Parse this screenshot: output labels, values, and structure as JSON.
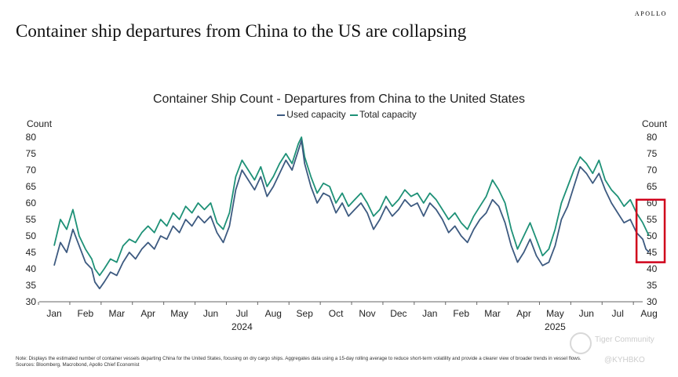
{
  "brand": "APOLLO",
  "headline": "Container ship departures from China to the US are collapsing",
  "note": "Note: Displays the estimated number of container vessels departing China for the United States, focusing on dry cargo ships. Aggregates data using a 15-day rolling average to reduce short-term volatility and provide a clearer view of broader trends in vessel flows.",
  "sources": "Sources: Bloomberg, Macrobond, Apollo Chief Economist",
  "watermark": {
    "name": "Tiger Community",
    "handle": "@KYHBKO"
  },
  "colors": {
    "used": "#3d5a80",
    "total": "#1e9177",
    "highlight": "#d0021b"
  },
  "chart_data": {
    "type": "line",
    "title": "Container Ship Count - Departures from China to the United States",
    "ylabel_left": "Count",
    "ylabel_right": "Count",
    "ylim": [
      30,
      80
    ],
    "yticks": [
      30,
      35,
      40,
      45,
      50,
      55,
      60,
      65,
      70,
      75,
      80
    ],
    "x_months": [
      "Jan",
      "Feb",
      "Mar",
      "Apr",
      "May",
      "Jun",
      "Jul",
      "Aug",
      "Sep",
      "Oct",
      "Nov",
      "Dec",
      "Jan",
      "Feb",
      "Mar",
      "Apr",
      "May",
      "Jun",
      "Jul",
      "Aug"
    ],
    "x_years": [
      {
        "label": "2024",
        "month_index": 6
      },
      {
        "label": "2025",
        "month_index": 16
      }
    ],
    "series": [
      {
        "name": "Used capacity",
        "points": [
          [
            0,
            41
          ],
          [
            0.2,
            48
          ],
          [
            0.4,
            45
          ],
          [
            0.6,
            52
          ],
          [
            0.8,
            47
          ],
          [
            1.0,
            42
          ],
          [
            1.2,
            40
          ],
          [
            1.3,
            36
          ],
          [
            1.45,
            34
          ],
          [
            1.6,
            36
          ],
          [
            1.8,
            39
          ],
          [
            2.0,
            38
          ],
          [
            2.2,
            42
          ],
          [
            2.4,
            45
          ],
          [
            2.6,
            43
          ],
          [
            2.8,
            46
          ],
          [
            3.0,
            48
          ],
          [
            3.2,
            46
          ],
          [
            3.4,
            50
          ],
          [
            3.6,
            49
          ],
          [
            3.8,
            53
          ],
          [
            4.0,
            51
          ],
          [
            4.2,
            55
          ],
          [
            4.4,
            53
          ],
          [
            4.6,
            56
          ],
          [
            4.8,
            54
          ],
          [
            5.0,
            56
          ],
          [
            5.2,
            51
          ],
          [
            5.4,
            48
          ],
          [
            5.6,
            53
          ],
          [
            5.8,
            64
          ],
          [
            6.0,
            70
          ],
          [
            6.2,
            67
          ],
          [
            6.4,
            64
          ],
          [
            6.6,
            68
          ],
          [
            6.8,
            62
          ],
          [
            7.0,
            65
          ],
          [
            7.2,
            69
          ],
          [
            7.4,
            73
          ],
          [
            7.6,
            70
          ],
          [
            7.8,
            76
          ],
          [
            7.9,
            79
          ],
          [
            8.0,
            72
          ],
          [
            8.2,
            65
          ],
          [
            8.4,
            60
          ],
          [
            8.6,
            63
          ],
          [
            8.8,
            62
          ],
          [
            9.0,
            57
          ],
          [
            9.2,
            60
          ],
          [
            9.4,
            56
          ],
          [
            9.6,
            58
          ],
          [
            9.8,
            60
          ],
          [
            10.0,
            57
          ],
          [
            10.2,
            52
          ],
          [
            10.4,
            55
          ],
          [
            10.6,
            59
          ],
          [
            10.8,
            56
          ],
          [
            11.0,
            58
          ],
          [
            11.2,
            61
          ],
          [
            11.4,
            59
          ],
          [
            11.6,
            60
          ],
          [
            11.8,
            56
          ],
          [
            12.0,
            60
          ],
          [
            12.2,
            58
          ],
          [
            12.4,
            55
          ],
          [
            12.6,
            51
          ],
          [
            12.8,
            53
          ],
          [
            13.0,
            50
          ],
          [
            13.2,
            48
          ],
          [
            13.4,
            52
          ],
          [
            13.6,
            55
          ],
          [
            13.8,
            57
          ],
          [
            14.0,
            61
          ],
          [
            14.2,
            59
          ],
          [
            14.4,
            54
          ],
          [
            14.6,
            47
          ],
          [
            14.8,
            42
          ],
          [
            15.0,
            45
          ],
          [
            15.2,
            49
          ],
          [
            15.4,
            44
          ],
          [
            15.6,
            41
          ],
          [
            15.8,
            42
          ],
          [
            16.0,
            47
          ],
          [
            16.2,
            55
          ],
          [
            16.4,
            59
          ],
          [
            16.6,
            65
          ],
          [
            16.8,
            71
          ],
          [
            17.0,
            69
          ],
          [
            17.2,
            66
          ],
          [
            17.4,
            69
          ],
          [
            17.6,
            64
          ],
          [
            17.8,
            60
          ],
          [
            18.0,
            57
          ],
          [
            18.2,
            54
          ],
          [
            18.4,
            55
          ],
          [
            18.6,
            51
          ],
          [
            18.8,
            49
          ],
          [
            18.9,
            46
          ],
          [
            19.0,
            45
          ]
        ]
      },
      {
        "name": "Total capacity",
        "points": [
          [
            0,
            47
          ],
          [
            0.2,
            55
          ],
          [
            0.4,
            52
          ],
          [
            0.6,
            58
          ],
          [
            0.8,
            50
          ],
          [
            1.0,
            46
          ],
          [
            1.2,
            43
          ],
          [
            1.3,
            40
          ],
          [
            1.45,
            38
          ],
          [
            1.6,
            40
          ],
          [
            1.8,
            43
          ],
          [
            2.0,
            42
          ],
          [
            2.2,
            47
          ],
          [
            2.4,
            49
          ],
          [
            2.6,
            48
          ],
          [
            2.8,
            51
          ],
          [
            3.0,
            53
          ],
          [
            3.2,
            51
          ],
          [
            3.4,
            55
          ],
          [
            3.6,
            53
          ],
          [
            3.8,
            57
          ],
          [
            4.0,
            55
          ],
          [
            4.2,
            59
          ],
          [
            4.4,
            57
          ],
          [
            4.6,
            60
          ],
          [
            4.8,
            58
          ],
          [
            5.0,
            60
          ],
          [
            5.2,
            54
          ],
          [
            5.4,
            52
          ],
          [
            5.6,
            57
          ],
          [
            5.8,
            68
          ],
          [
            6.0,
            73
          ],
          [
            6.2,
            70
          ],
          [
            6.4,
            67
          ],
          [
            6.6,
            71
          ],
          [
            6.8,
            65
          ],
          [
            7.0,
            68
          ],
          [
            7.2,
            72
          ],
          [
            7.4,
            75
          ],
          [
            7.6,
            72
          ],
          [
            7.8,
            78
          ],
          [
            7.9,
            80
          ],
          [
            8.0,
            74
          ],
          [
            8.2,
            68
          ],
          [
            8.4,
            63
          ],
          [
            8.6,
            66
          ],
          [
            8.8,
            65
          ],
          [
            9.0,
            60
          ],
          [
            9.2,
            63
          ],
          [
            9.4,
            59
          ],
          [
            9.6,
            61
          ],
          [
            9.8,
            63
          ],
          [
            10.0,
            60
          ],
          [
            10.2,
            56
          ],
          [
            10.4,
            58
          ],
          [
            10.6,
            62
          ],
          [
            10.8,
            59
          ],
          [
            11.0,
            61
          ],
          [
            11.2,
            64
          ],
          [
            11.4,
            62
          ],
          [
            11.6,
            63
          ],
          [
            11.8,
            60
          ],
          [
            12.0,
            63
          ],
          [
            12.2,
            61
          ],
          [
            12.4,
            58
          ],
          [
            12.6,
            55
          ],
          [
            12.8,
            57
          ],
          [
            13.0,
            54
          ],
          [
            13.2,
            52
          ],
          [
            13.4,
            56
          ],
          [
            13.6,
            59
          ],
          [
            13.8,
            62
          ],
          [
            14.0,
            67
          ],
          [
            14.2,
            64
          ],
          [
            14.4,
            60
          ],
          [
            14.6,
            52
          ],
          [
            14.8,
            46
          ],
          [
            15.0,
            50
          ],
          [
            15.2,
            54
          ],
          [
            15.4,
            49
          ],
          [
            15.6,
            44
          ],
          [
            15.8,
            46
          ],
          [
            16.0,
            52
          ],
          [
            16.2,
            60
          ],
          [
            16.4,
            65
          ],
          [
            16.6,
            70
          ],
          [
            16.8,
            74
          ],
          [
            17.0,
            72
          ],
          [
            17.2,
            69
          ],
          [
            17.4,
            73
          ],
          [
            17.6,
            67
          ],
          [
            17.8,
            64
          ],
          [
            18.0,
            62
          ],
          [
            18.2,
            59
          ],
          [
            18.4,
            61
          ],
          [
            18.6,
            57
          ],
          [
            18.8,
            54
          ],
          [
            18.9,
            52
          ],
          [
            19.0,
            50
          ]
        ]
      }
    ],
    "annotation": {
      "type": "highlight-box",
      "x_range": [
        18.6,
        19.5
      ],
      "y_range": [
        42,
        61
      ]
    }
  }
}
